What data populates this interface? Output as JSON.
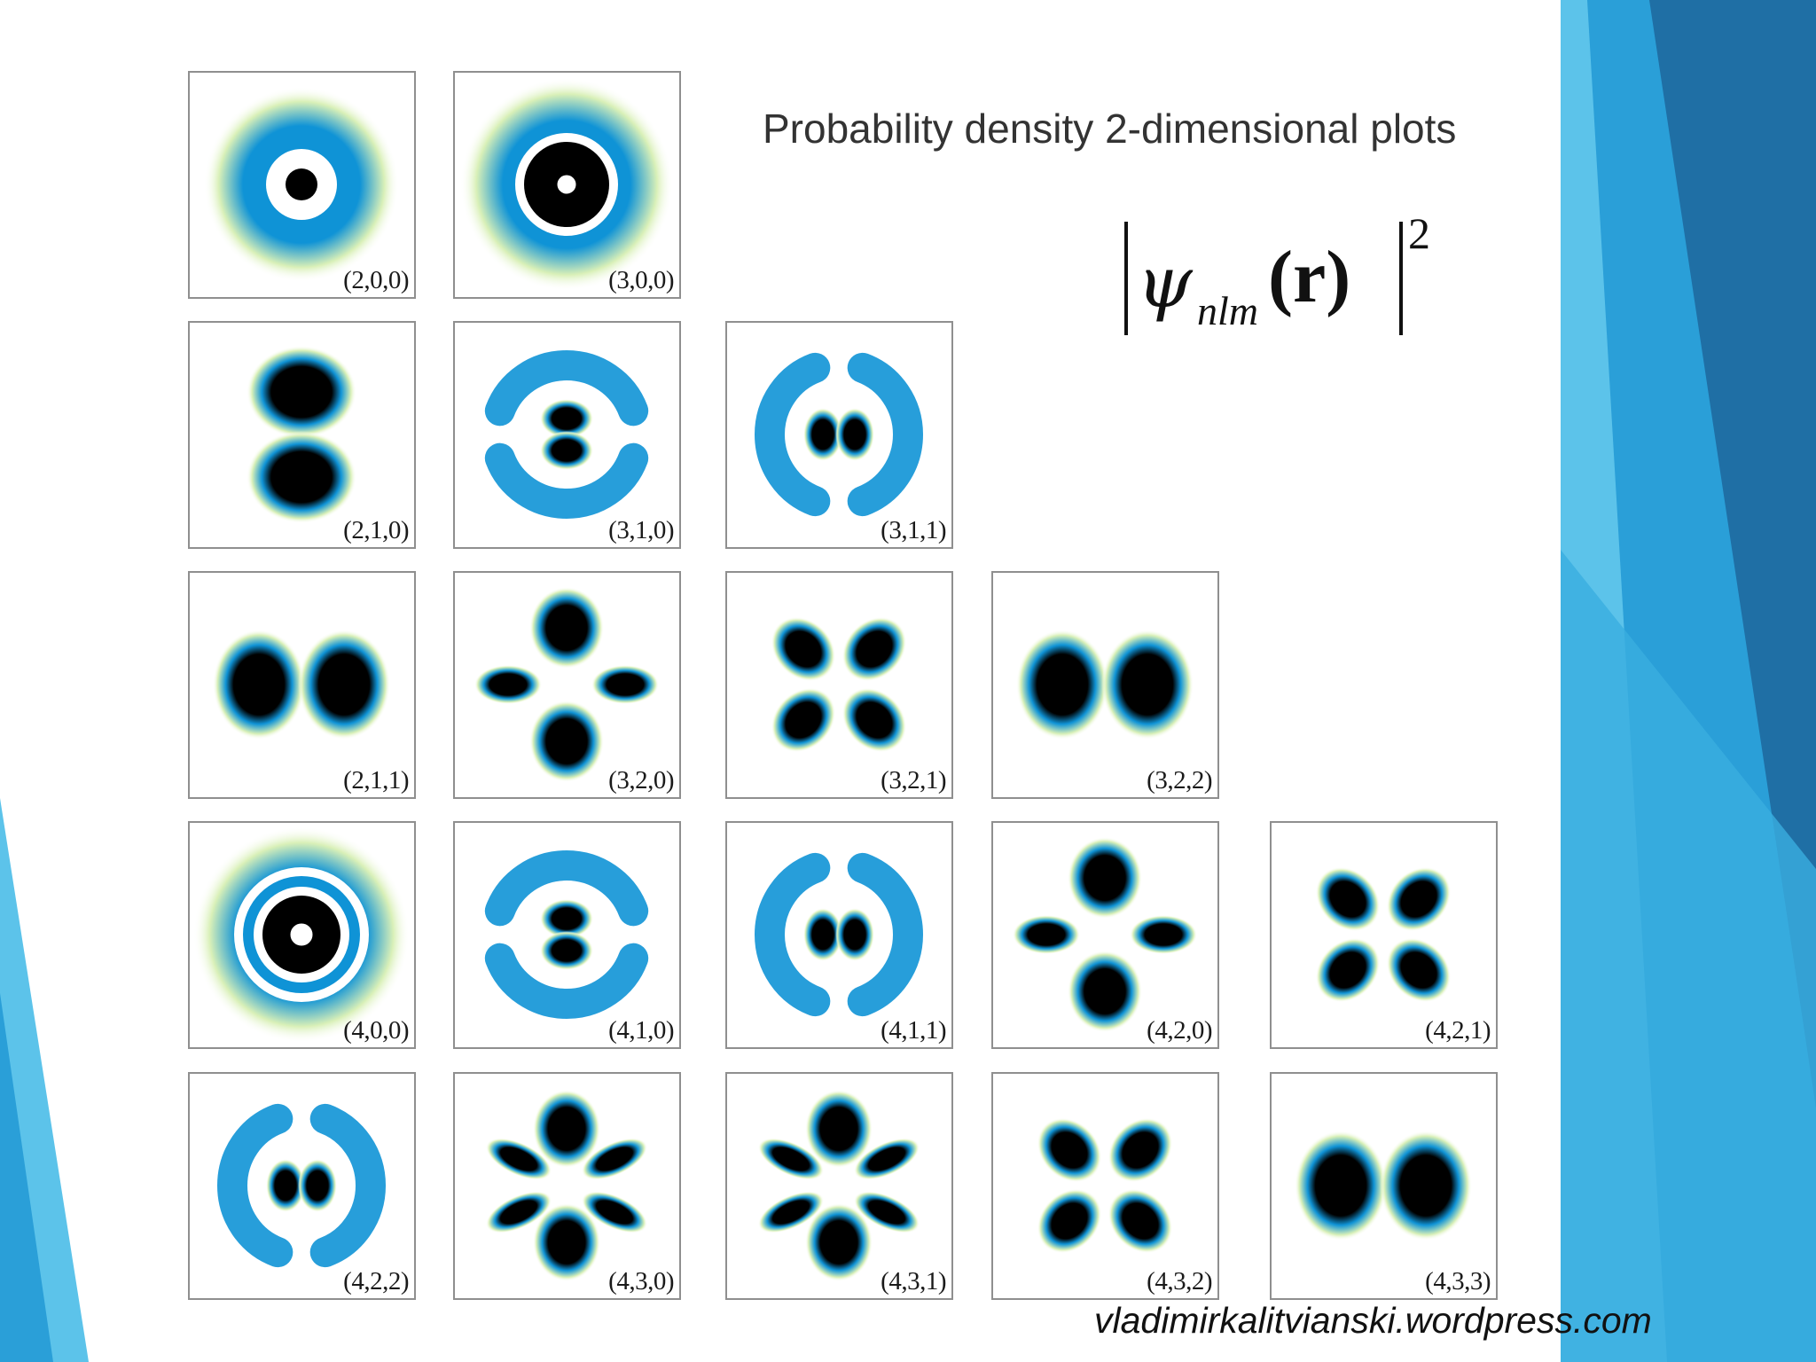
{
  "slide": {
    "title": "Probability density 2-dimensional plots",
    "formula": {
      "symbol": "ψ",
      "subscript": "nlm",
      "argument": "(r)",
      "exponent": "2"
    },
    "credit": "vladimirkalitvianski.wordpress.com"
  },
  "colors": {
    "background": "#ffffff",
    "accent_light": "#5cc3ea",
    "accent_mid": "#2a9fd8",
    "accent_dark": "#1f6fa5",
    "density_low": "#d9f0b8",
    "density_mid": "#0f93d6",
    "density_high": "#000000"
  },
  "panels": [
    {
      "label": "(2,0,0)",
      "shape": "ring-center"
    },
    {
      "label": "(3,0,0)",
      "shape": "double-ring"
    },
    {
      "label": "(2,1,0)",
      "shape": "two-lobes-vertical"
    },
    {
      "label": "(3,1,0)",
      "shape": "lobes-vertical-arcs"
    },
    {
      "label": "(3,1,1)",
      "shape": "lobes-horizontal-arcs"
    },
    {
      "label": "(2,1,1)",
      "shape": "two-lobes-horizontal"
    },
    {
      "label": "(3,2,0)",
      "shape": "dz2-like"
    },
    {
      "label": "(3,2,1)",
      "shape": "four-lobes-diagonal"
    },
    {
      "label": "(3,2,2)",
      "shape": "two-lobes-horizontal"
    },
    {
      "label": "(4,0,0)",
      "shape": "triple-ring"
    },
    {
      "label": "(4,1,0)",
      "shape": "lobes-vertical-arcs"
    },
    {
      "label": "(4,1,1)",
      "shape": "lobes-horizontal-arcs"
    },
    {
      "label": "(4,2,0)",
      "shape": "dz2-like"
    },
    {
      "label": "(4,2,1)",
      "shape": "four-lobes-diagonal"
    },
    {
      "label": "(4,2,2)",
      "shape": "lobes-horizontal-arcs"
    },
    {
      "label": "(4,3,0)",
      "shape": "six-lobes"
    },
    {
      "label": "(4,3,1)",
      "shape": "six-lobes"
    },
    {
      "label": "(4,3,2)",
      "shape": "four-lobes-diagonal"
    },
    {
      "label": "(4,3,3)",
      "shape": "two-lobes-horizontal"
    }
  ]
}
